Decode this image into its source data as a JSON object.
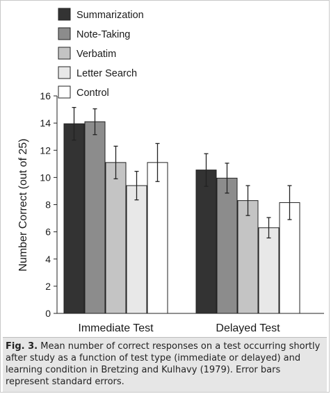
{
  "chart_data": {
    "type": "bar",
    "categories": [
      "Immediate Test",
      "Delayed Test"
    ],
    "series": [
      {
        "name": "Summarization",
        "color": "#333333",
        "values": [
          13.95,
          10.55
        ],
        "errors": [
          1.2,
          1.2
        ]
      },
      {
        "name": "Note-Taking",
        "color": "#8c8c8c",
        "values": [
          14.1,
          9.95
        ],
        "errors": [
          0.95,
          1.1
        ]
      },
      {
        "name": "Verbatim",
        "color": "#c4c4c4",
        "values": [
          11.1,
          8.3
        ],
        "errors": [
          1.2,
          1.1
        ]
      },
      {
        "name": "Letter Search",
        "color": "#e8e8e8",
        "values": [
          9.4,
          6.3
        ],
        "errors": [
          1.05,
          0.75
        ]
      },
      {
        "name": "Control",
        "color": "#ffffff",
        "values": [
          11.1,
          8.15
        ],
        "errors": [
          1.4,
          1.25
        ]
      }
    ],
    "ylabel": "Number Correct (out of 25)",
    "xlabel": "",
    "ylim": [
      0,
      16
    ],
    "yticks": [
      "0",
      "2",
      "4",
      "6",
      "8",
      "10",
      "12",
      "14",
      "16"
    ],
    "legend_position": "top-left",
    "grid": false
  },
  "caption": {
    "label": "Fig. 3.",
    "text": " Mean number of correct responses on a test occurring shortly after study as a function of test type (immediate or delayed) and learning condition in Bretzing and Kulhavy (1979). Error bars represent standard errors."
  }
}
